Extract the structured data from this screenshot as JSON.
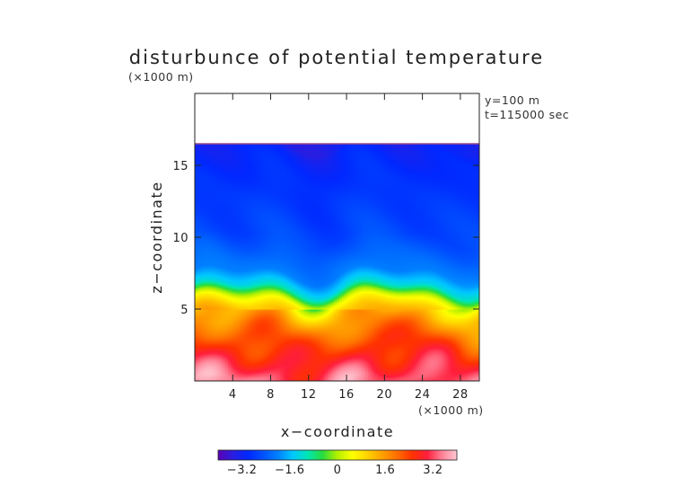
{
  "chart_data": {
    "type": "heatmap",
    "title": "disturbunce of potential temperature",
    "y_unit_label": "(×1000 m)",
    "x_unit_label": "(×1000 m)",
    "xlabel": "x−coordinate",
    "ylabel": "z−coordinate",
    "annotations": [
      "y=100 m",
      "t=115000 sec"
    ],
    "xlim": [
      0,
      30
    ],
    "ylim": [
      0,
      20
    ],
    "x_ticks": [
      4,
      8,
      12,
      16,
      20,
      24,
      28
    ],
    "y_ticks": [
      5,
      10,
      15
    ],
    "data_top_km": 16.5,
    "colorbar": {
      "range": [
        -4,
        4
      ],
      "ticks": [
        -3.2,
        -1.6,
        0,
        1.6,
        3.2
      ],
      "tick_labels": [
        "−3.2",
        "−1.6",
        "0",
        "1.6",
        "3.2"
      ],
      "colors": [
        "#5a00b4",
        "#2a1ee0",
        "#0028ff",
        "#0050ff",
        "#0080ff",
        "#00c8ff",
        "#00e6b4",
        "#28dc3c",
        "#b4f000",
        "#ffff00",
        "#ffd200",
        "#ffa000",
        "#ff6e00",
        "#ff3200",
        "#ff1e3c",
        "#ff8296",
        "#ffc8d2"
      ]
    },
    "profile": {
      "z_km": [
        0,
        1,
        2,
        3,
        4,
        5,
        5.6,
        6.0,
        6.5,
        7.5,
        10,
        14,
        16,
        16.5
      ],
      "value": [
        3.4,
        3.0,
        2.6,
        2.2,
        1.7,
        1.1,
        0.5,
        -0.2,
        -1.2,
        -2.0,
        -2.6,
        -2.9,
        -3.1,
        -3.3
      ]
    }
  }
}
